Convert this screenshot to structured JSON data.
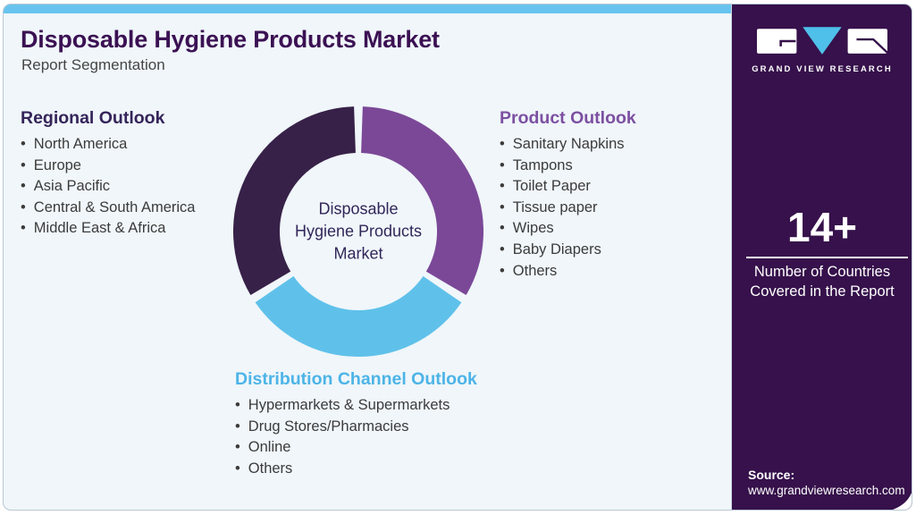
{
  "header": {
    "title": "Disposable Hygiene Products Market",
    "subtitle": "Report Segmentation"
  },
  "regional": {
    "heading": "Regional Outlook",
    "items": [
      "North America",
      "Europe",
      "Asia Pacific",
      "Central & South America",
      "Middle East & Africa"
    ]
  },
  "product": {
    "heading": "Product Outlook",
    "items": [
      "Sanitary Napkins",
      "Tampons",
      "Toilet Paper",
      "Tissue paper",
      "Wipes",
      "Baby Diapers",
      "Others"
    ]
  },
  "distribution": {
    "heading": "Distribution Channel Outlook",
    "items": [
      "Hypermarkets & Supermarkets",
      "Drug Stores/Pharmacies",
      "Online",
      "Others"
    ]
  },
  "chart_data": {
    "type": "pie",
    "variant": "donut",
    "title": "Disposable Hygiene Products Market",
    "center_label": [
      "Disposable",
      "Hygiene Products",
      "Market"
    ],
    "legend_position": "none",
    "outer_radius_px": 140,
    "inner_radius_px": 88,
    "segments": [
      {
        "name": "product-outlook",
        "color": "#7b4897",
        "start_deg": 2,
        "end_deg": 120.5,
        "approx_share_pct": 34
      },
      {
        "name": "distribution-channel-outlook",
        "color": "#5fc1ea",
        "start_deg": 124.5,
        "end_deg": 235.5,
        "approx_share_pct": 31
      },
      {
        "name": "regional-outlook",
        "color": "#372148",
        "start_deg": 239.5,
        "end_deg": 358,
        "approx_share_pct": 35
      }
    ]
  },
  "sidebar": {
    "logo_text": "GRAND VIEW RESEARCH",
    "stat_value": "14+",
    "stat_caption": [
      "Number of Countries",
      "Covered in the Report"
    ],
    "source_label": "Source:",
    "source_url": "www.grandviewresearch.com"
  },
  "colors": {
    "accent_bar": "#68c4ee",
    "card_background": "#f0f6fa",
    "sidebar_background": "#36114b",
    "title": "#3b1153",
    "regional_heading": "#35245a",
    "product_heading": "#7c50a1",
    "distribution_heading": "#4cb4e7",
    "logo_triangle": "#4fc0ea"
  }
}
